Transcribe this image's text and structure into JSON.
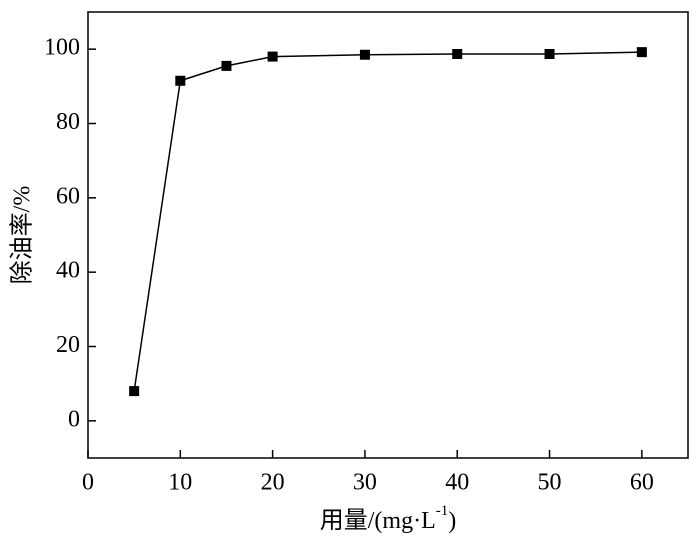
{
  "chart_data": {
    "type": "line",
    "xlabel": {
      "main": "用量/(mg·L",
      "sup": "-1",
      "tail": ")"
    },
    "ylabel": "除油率/%",
    "x": [
      5,
      10,
      15,
      20,
      30,
      40,
      50,
      60
    ],
    "series": [
      {
        "color": "#000000",
        "values": [
          8,
          91.5,
          95.5,
          98,
          98.5,
          98.7,
          98.7,
          99.2
        ]
      }
    ],
    "xlim": [
      0,
      65
    ],
    "xticks": [
      0,
      10,
      20,
      30,
      40,
      50,
      60
    ],
    "ylim": [
      -10,
      110
    ],
    "yticks": [
      0,
      20,
      40,
      60,
      80,
      100
    ],
    "grid": false
  }
}
